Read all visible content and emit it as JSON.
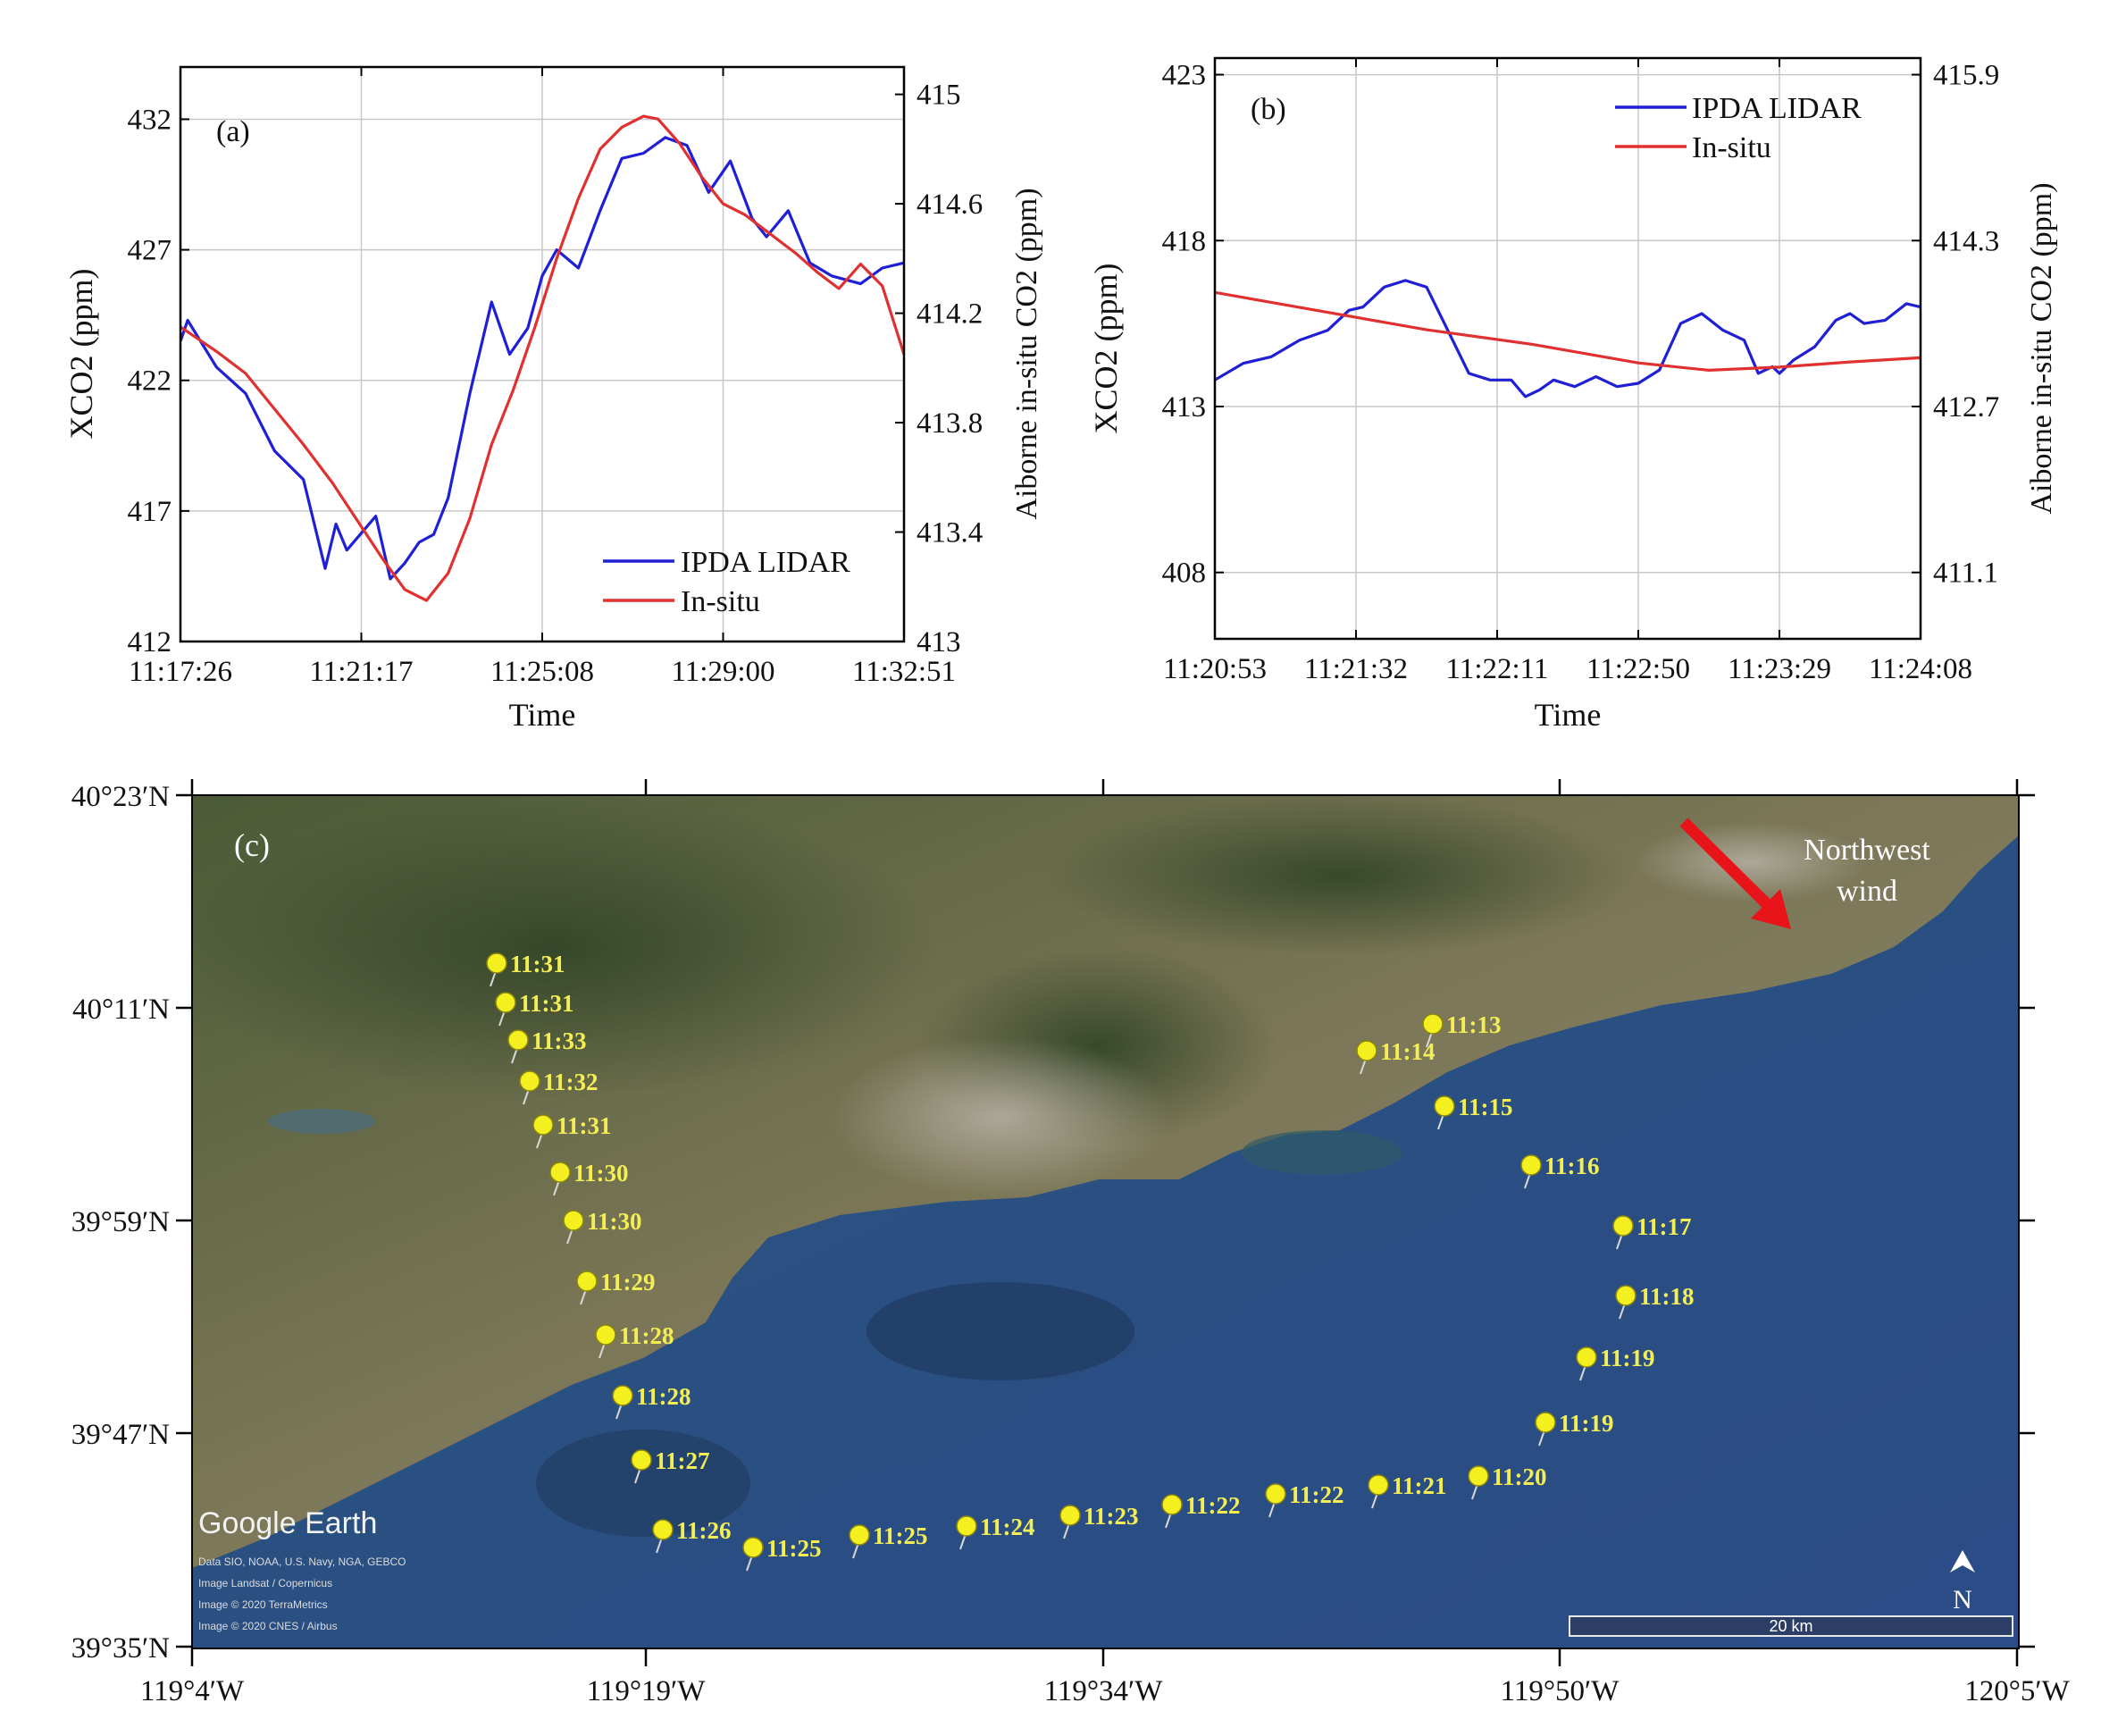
{
  "chart_data": [
    {
      "id": "a",
      "type": "line",
      "panel_label": "(a)",
      "xlabel": "Time",
      "ylabel": "XCO2 (ppm)",
      "y2label": "Aiborne in-situ CO2 (ppm)",
      "xticks": [
        "11:17:26",
        "11:21:17",
        "11:25:08",
        "11:29:00",
        "11:32:51"
      ],
      "yticks": [
        "412",
        "417",
        "422",
        "427",
        "432"
      ],
      "y2ticks": [
        "413",
        "413.4",
        "413.8",
        "414.2",
        "414.6",
        "415"
      ],
      "ylim": [
        412,
        434
      ],
      "y2lim": [
        413,
        415.1
      ],
      "legend": [
        "IPDA LIDAR",
        "In-situ"
      ],
      "legend_position": "bottom-right",
      "series": [
        {
          "name": "IPDA LIDAR",
          "color": "#1f1fd6",
          "axis": "left",
          "x": [
            0,
            0.01,
            0.05,
            0.09,
            0.13,
            0.17,
            0.2,
            0.215,
            0.23,
            0.27,
            0.29,
            0.31,
            0.33,
            0.35,
            0.37,
            0.4,
            0.43,
            0.455,
            0.48,
            0.5,
            0.52,
            0.55,
            0.58,
            0.61,
            0.64,
            0.67,
            0.7,
            0.73,
            0.76,
            0.79,
            0.81,
            0.84,
            0.87,
            0.9,
            0.94,
            0.97,
            1.0
          ],
          "values": [
            423.5,
            424.3,
            422.5,
            421.5,
            419.3,
            418.2,
            414.8,
            416.5,
            415.5,
            416.8,
            414.4,
            415.0,
            415.8,
            416.1,
            417.5,
            421.5,
            425.0,
            423.0,
            424.0,
            426.0,
            427.0,
            426.3,
            428.5,
            430.5,
            430.7,
            431.3,
            431.0,
            429.2,
            430.4,
            428.2,
            427.5,
            428.5,
            426.5,
            426.0,
            425.7,
            426.3,
            426.5
          ]
        },
        {
          "name": "In-situ",
          "color": "#e03030",
          "axis": "right",
          "x": [
            0,
            0.05,
            0.09,
            0.13,
            0.17,
            0.21,
            0.25,
            0.28,
            0.31,
            0.34,
            0.37,
            0.4,
            0.43,
            0.46,
            0.49,
            0.52,
            0.55,
            0.58,
            0.61,
            0.64,
            0.66,
            0.69,
            0.72,
            0.75,
            0.78,
            0.81,
            0.85,
            0.88,
            0.91,
            0.94,
            0.97,
            1.0
          ],
          "values": [
            414.15,
            414.06,
            413.98,
            413.85,
            413.72,
            413.58,
            413.42,
            413.3,
            413.19,
            413.15,
            413.25,
            413.45,
            413.72,
            413.92,
            414.15,
            414.4,
            414.62,
            414.8,
            414.88,
            414.92,
            414.91,
            414.82,
            414.7,
            414.6,
            414.56,
            414.5,
            414.42,
            414.35,
            414.29,
            414.38,
            414.3,
            414.05
          ]
        }
      ]
    },
    {
      "id": "b",
      "type": "line",
      "panel_label": "(b)",
      "xlabel": "Time",
      "ylabel": "XCO2 (ppm)",
      "y2label": "Aiborne in-situ CO2 (ppm)",
      "xticks": [
        "11:20:53",
        "11:21:32",
        "11:22:11",
        "11:22:50",
        "11:23:29",
        "11:24:08"
      ],
      "yticks": [
        "408",
        "413",
        "418",
        "423"
      ],
      "y2ticks": [
        "411.1",
        "412.7",
        "414.3",
        "415.9"
      ],
      "ylim": [
        406,
        423.5
      ],
      "y2lim": [
        410.46,
        416.06
      ],
      "legend": [
        "IPDA LIDAR",
        "In-situ"
      ],
      "legend_position": "top-right",
      "series": [
        {
          "name": "IPDA LIDAR",
          "color": "#1f1fd6",
          "axis": "left",
          "x": [
            0,
            0.04,
            0.08,
            0.12,
            0.16,
            0.19,
            0.21,
            0.24,
            0.27,
            0.3,
            0.33,
            0.36,
            0.39,
            0.42,
            0.44,
            0.46,
            0.48,
            0.51,
            0.54,
            0.57,
            0.6,
            0.63,
            0.66,
            0.69,
            0.72,
            0.75,
            0.77,
            0.79,
            0.8,
            0.82,
            0.85,
            0.88,
            0.9,
            0.92,
            0.95,
            0.98,
            1.0
          ],
          "values": [
            413.8,
            414.3,
            414.5,
            415.0,
            415.3,
            415.9,
            416.0,
            416.6,
            416.8,
            416.6,
            415.3,
            414.0,
            413.8,
            413.8,
            413.3,
            413.5,
            413.8,
            413.6,
            413.9,
            413.6,
            413.7,
            414.1,
            415.5,
            415.8,
            415.3,
            415.0,
            414.0,
            414.2,
            414.0,
            414.4,
            414.8,
            415.6,
            415.8,
            415.5,
            415.6,
            416.1,
            416.0
          ]
        },
        {
          "name": "In-situ",
          "color": "#e03030",
          "axis": "right",
          "x": [
            0,
            0.15,
            0.3,
            0.45,
            0.6,
            0.7,
            0.8,
            0.9,
            1.0
          ],
          "values": [
            413.8,
            413.62,
            413.44,
            413.3,
            413.12,
            413.05,
            413.08,
            413.13,
            413.17
          ]
        }
      ]
    }
  ],
  "map": {
    "panel_label": "(c)",
    "xticks": [
      "119°4′W",
      "119°19′W",
      "119°34′W",
      "119°50′W",
      "120°5′W"
    ],
    "yticks": [
      "40°23′N",
      "40°11′N",
      "39°59′N",
      "39°47′N",
      "39°35′N"
    ],
    "annotation": [
      "Northwest",
      "wind"
    ],
    "wind_color": "#e8141a",
    "watermark": "Google Earth",
    "credits": [
      "Data SIO, NOAA, U.S. Navy, NGA, GEBCO",
      "Image Landsat / Copernicus",
      "Image © 2020 TerraMetrics",
      "Image © 2020 CNES / Airbus"
    ],
    "scale_label": "20 km",
    "north_label": "N",
    "pin_color": "#f4f020",
    "pins": [
      {
        "label": "11:31"
      },
      {
        "label": "11:31"
      },
      {
        "label": "11:33"
      },
      {
        "label": "11:32"
      },
      {
        "label": "11:31"
      },
      {
        "label": "11:30"
      },
      {
        "label": "11:30"
      },
      {
        "label": "11:29"
      },
      {
        "label": "11:28"
      },
      {
        "label": "11:28"
      },
      {
        "label": "11:27"
      },
      {
        "label": "11:26"
      },
      {
        "label": "11:25"
      },
      {
        "label": "11:25"
      },
      {
        "label": "11:24"
      },
      {
        "label": "11:23"
      },
      {
        "label": "11:22"
      },
      {
        "label": "11:22"
      },
      {
        "label": "11:21"
      },
      {
        "label": "11:20"
      },
      {
        "label": "11:19"
      },
      {
        "label": "11:19"
      },
      {
        "label": "11:18"
      },
      {
        "label": "11:17"
      },
      {
        "label": "11:16"
      },
      {
        "label": "11:15"
      },
      {
        "label": "11:14"
      },
      {
        "label": "11:13"
      }
    ]
  }
}
